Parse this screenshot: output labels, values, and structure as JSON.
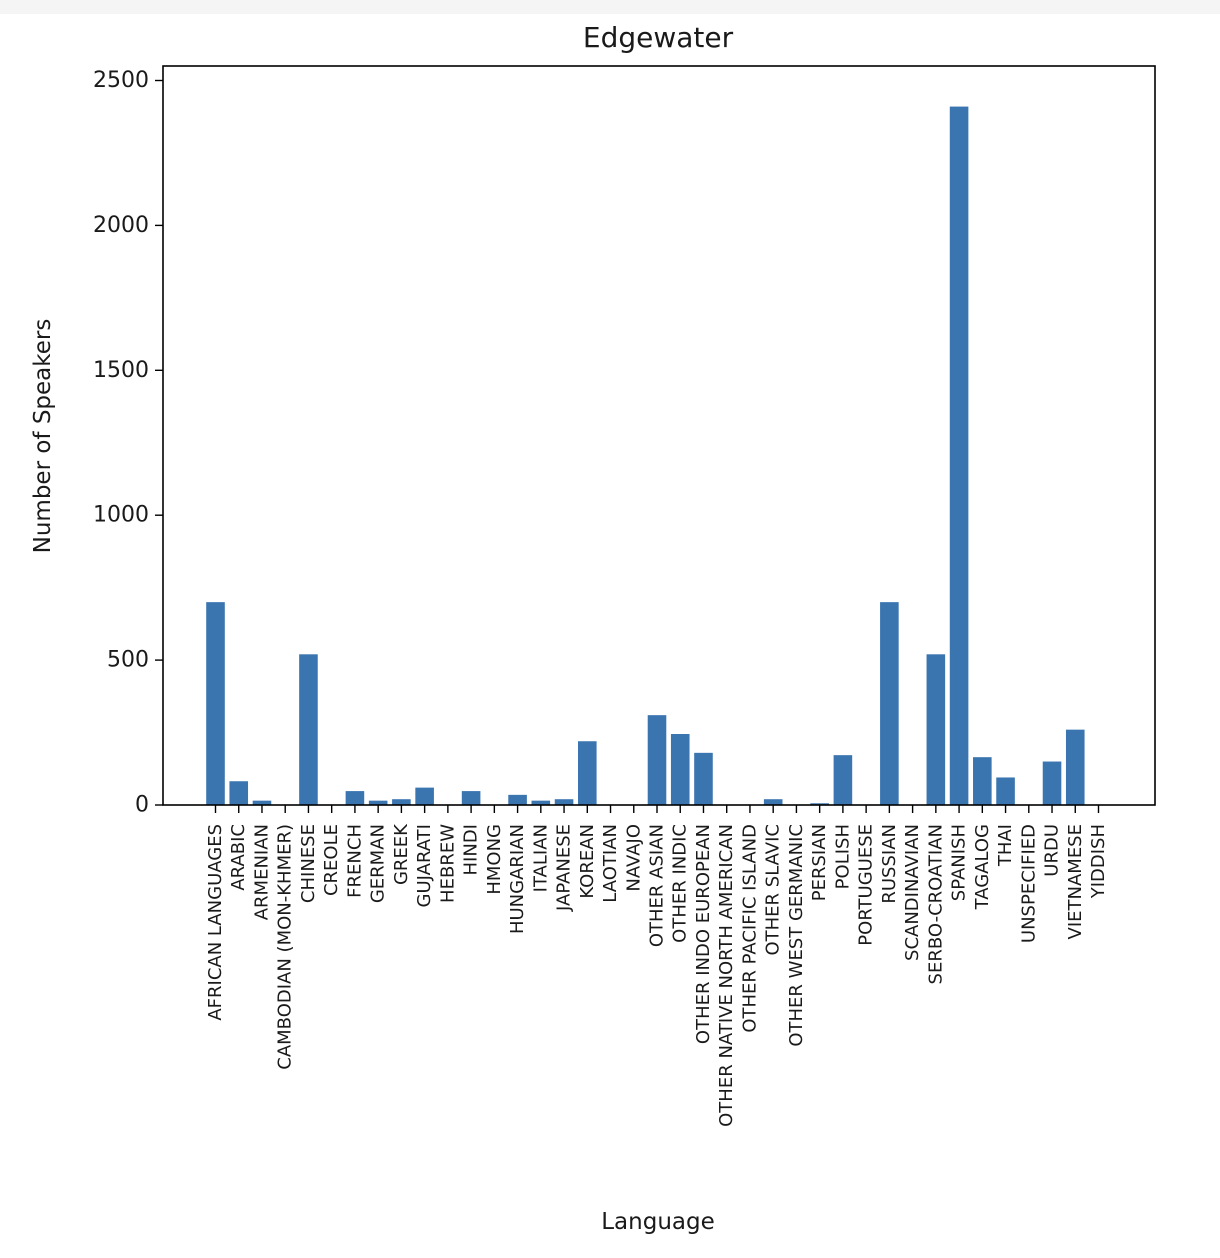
{
  "chart_data": {
    "type": "bar",
    "title": "Edgewater",
    "xlabel": "Language",
    "ylabel": "Number of Speakers",
    "ylim": [
      0,
      2500
    ],
    "yticks": [
      0,
      500,
      1000,
      1500,
      2000,
      2500
    ],
    "grid": false,
    "bar_color": "#3a75b0",
    "categories": [
      "AFRICAN LANGUAGES",
      "ARABIC",
      "ARMENIAN",
      "CAMBODIAN (MON-KHMER)",
      "CHINESE",
      "CREOLE",
      "FRENCH",
      "GERMAN",
      "GREEK",
      "GUJARATI",
      "HEBREW",
      "HINDI",
      "HMONG",
      "HUNGARIAN",
      "ITALIAN",
      "JAPANESE",
      "KOREAN",
      "LAOTIAN",
      "NAVAJO",
      "OTHER ASIAN",
      "OTHER INDIC",
      "OTHER INDO EUROPEAN",
      "OTHER NATIVE NORTH AMERICAN",
      "OTHER PACIFIC ISLAND",
      "OTHER SLAVIC",
      "OTHER WEST GERMANIC",
      "PERSIAN",
      "POLISH",
      "PORTUGUESE",
      "RUSSIAN",
      "SCANDINAVIAN",
      "SERBO-CROATIAN",
      "SPANISH",
      "TAGALOG",
      "THAI",
      "UNSPECIFIED",
      "URDU",
      "VIETNAMESE",
      "YIDDISH"
    ],
    "values": [
      700,
      82,
      15,
      0,
      520,
      0,
      48,
      15,
      20,
      60,
      0,
      48,
      0,
      35,
      15,
      20,
      220,
      0,
      0,
      310,
      245,
      180,
      0,
      0,
      20,
      0,
      6,
      172,
      0,
      700,
      0,
      520,
      2410,
      165,
      95,
      0,
      150,
      260,
      0
    ]
  }
}
